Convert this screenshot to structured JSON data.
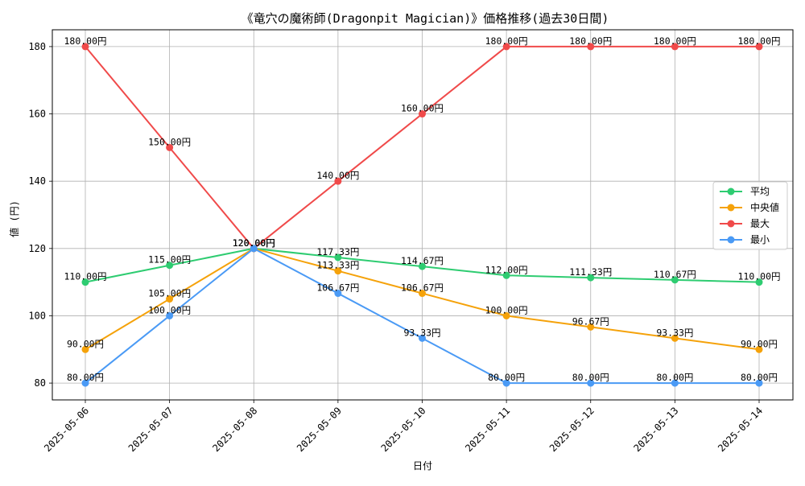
{
  "chart_data": {
    "type": "line",
    "title": "《竜穴の魔術師(Dragonpit Magician)》価格推移(過去30日間)",
    "xlabel": "日付",
    "ylabel": "値 (円)",
    "x": [
      "2025-05-06",
      "2025-05-07",
      "2025-05-08",
      "2025-05-09",
      "2025-05-10",
      "2025-05-11",
      "2025-05-12",
      "2025-05-13",
      "2025-05-14"
    ],
    "ylim": [
      75,
      185
    ],
    "yticks": [
      80,
      100,
      120,
      140,
      160,
      180
    ],
    "grid": true,
    "legend_position": "right",
    "value_suffix": "円",
    "series": [
      {
        "name": "平均",
        "color": "#2ecc71",
        "values": [
          110.0,
          115.0,
          120.0,
          117.33,
          114.67,
          112.0,
          111.33,
          110.67,
          110.0
        ]
      },
      {
        "name": "中央値",
        "color": "#f5a20a",
        "values": [
          90.0,
          105.0,
          120.0,
          113.33,
          106.67,
          100.0,
          96.67,
          93.33,
          90.0
        ]
      },
      {
        "name": "最大",
        "color": "#f04a4a",
        "values": [
          180.0,
          150.0,
          120.0,
          140.0,
          160.0,
          180.0,
          180.0,
          180.0,
          180.0
        ]
      },
      {
        "name": "最小",
        "color": "#4a9af5",
        "values": [
          80.0,
          100.0,
          120.0,
          106.67,
          93.33,
          80.0,
          80.0,
          80.0,
          80.0
        ]
      }
    ]
  }
}
